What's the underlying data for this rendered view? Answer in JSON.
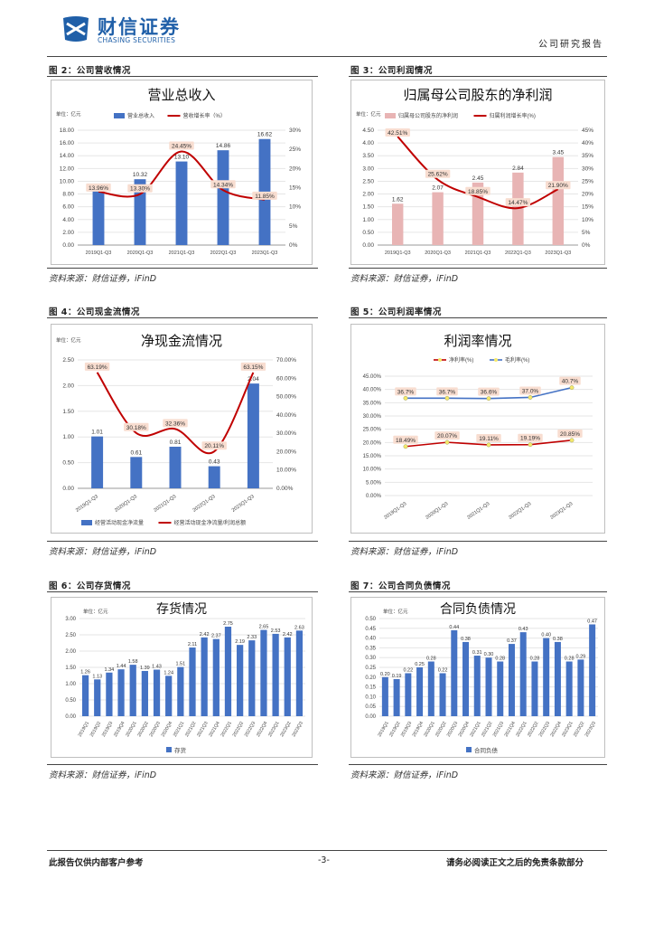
{
  "header": {
    "brand_cn": "财信证券",
    "brand_en": "CHASING SECURITIES",
    "report_type": "公司研究报告"
  },
  "colors": {
    "bar_blue": "#4472C4",
    "line_red": "#C00000",
    "bar_pink": "#E8B4B4",
    "line_blue": "#4472C4",
    "label_bg": "#F8DDD0"
  },
  "figures": {
    "fig2": {
      "caption": "图 2：公司营收情况",
      "source": "资料来源：财信证券，iFinD",
      "chart_data": {
        "type": "bar+line",
        "title": "营业总收入",
        "unit": "亿元",
        "categories": [
          "2019Q1-Q3",
          "2020Q1-Q3",
          "2021Q1-Q3",
          "2022Q1-Q3",
          "2023Q1-Q3"
        ],
        "series": [
          {
            "name": "营业总收入",
            "type": "bar",
            "values": [
              8.96,
              10.32,
              13.1,
              14.86,
              16.62
            ]
          },
          {
            "name": "营收增长率（%）",
            "type": "line",
            "values": [
              13.96,
              13.3,
              24.45,
              14.34,
              11.85
            ]
          }
        ],
        "ylim_left": [
          0,
          18
        ],
        "yticks_left": [
          "0.00",
          "2.00",
          "4.00",
          "6.00",
          "8.00",
          "10.00",
          "12.00",
          "14.00",
          "16.00",
          "18.00"
        ],
        "ylim_right": [
          0,
          30
        ],
        "yticks_right": [
          "0%",
          "5%",
          "10%",
          "15%",
          "20%",
          "25%",
          "30%"
        ],
        "bar_labels": [
          "",
          "10.32",
          "13.10",
          "14.86",
          "16.62"
        ],
        "line_labels": [
          "13.96%",
          "13.30%",
          "24.45%",
          "14.34%",
          "11.85%"
        ]
      }
    },
    "fig3": {
      "caption": "图 3：公司利润情况",
      "source": "资料来源：财信证券，iFinD",
      "chart_data": {
        "type": "bar+line",
        "title": "归属母公司股东的净利润",
        "unit": "亿元",
        "categories": [
          "2019Q1-Q3",
          "2020Q1-Q3",
          "2021Q1-Q3",
          "2022Q1-Q3",
          "2023Q1-Q3"
        ],
        "series": [
          {
            "name": "归属母公司股东的净利润",
            "type": "bar",
            "values": [
              1.62,
              2.07,
              2.45,
              2.84,
              3.45
            ]
          },
          {
            "name": "归属利润增长率(%)",
            "type": "line",
            "values": [
              42.51,
              25.62,
              18.85,
              14.47,
              21.9
            ]
          }
        ],
        "ylim_left": [
          0,
          4.5
        ],
        "yticks_left": [
          "0.00",
          "0.50",
          "1.00",
          "1.50",
          "2.00",
          "2.50",
          "3.00",
          "3.50",
          "4.00",
          "4.50"
        ],
        "ylim_right": [
          0,
          45
        ],
        "yticks_right": [
          "0%",
          "5%",
          "10%",
          "15%",
          "20%",
          "25%",
          "30%",
          "35%",
          "40%",
          "45%"
        ],
        "bar_labels": [
          "1.62",
          "2.07",
          "2.45",
          "2.84",
          "3.45"
        ],
        "line_labels": [
          "42.51%",
          "25.62%",
          "18.85%",
          "14.47%",
          "21.90%"
        ]
      }
    },
    "fig4": {
      "caption": "图 4：公司现金流情况",
      "source": "资料来源：财信证券，iFinD",
      "chart_data": {
        "type": "bar+line",
        "title": "净现金流情况",
        "unit": "亿元",
        "categories": [
          "2019Q1-Q3",
          "2020Q1-Q3",
          "2021Q1-Q3",
          "2022Q1-Q3",
          "2023Q1-Q3"
        ],
        "series": [
          {
            "name": "经营活动现金净流量",
            "type": "bar",
            "values": [
              1.01,
              0.61,
              0.81,
              0.43,
              2.04
            ]
          },
          {
            "name": "经营活动现金净流量/利润总额",
            "type": "line",
            "values": [
              63.19,
              30.18,
              32.36,
              20.11,
              63.15
            ]
          }
        ],
        "ylim_left": [
          0,
          2.5
        ],
        "yticks_left": [
          "0.00",
          "0.50",
          "1.00",
          "1.50",
          "2.00",
          "2.50"
        ],
        "ylim_right": [
          0,
          70
        ],
        "yticks_right": [
          "0.00%",
          "10.00%",
          "20.00%",
          "30.00%",
          "40.00%",
          "50.00%",
          "60.00%",
          "70.00%"
        ],
        "bar_labels": [
          "1.01",
          "0.61",
          "0.81",
          "0.43",
          "2.04"
        ],
        "line_labels": [
          "63.19%",
          "30.18%",
          "32.36%",
          "20.11%",
          "63.15%"
        ]
      }
    },
    "fig5": {
      "caption": "图 5：公司利润率情况",
      "source": "资料来源：财信证券，iFinD",
      "chart_data": {
        "type": "line",
        "title": "利润率情况",
        "categories": [
          "2019Q1-Q3",
          "2020Q1-Q3",
          "2021Q1-Q3",
          "2022Q1-Q3",
          "2023Q1-Q3"
        ],
        "series": [
          {
            "name": "净利率(%)",
            "values": [
              18.49,
              20.07,
              19.11,
              19.19,
              20.85
            ]
          },
          {
            "name": "毛利率(%)",
            "values": [
              36.7,
              36.7,
              36.6,
              37.0,
              40.7
            ]
          }
        ],
        "ylim": [
          0,
          45
        ],
        "yticks": [
          "0.00%",
          "5.00%",
          "10.00%",
          "15.00%",
          "20.00%",
          "25.00%",
          "30.00%",
          "35.00%",
          "40.00%",
          "45.00%"
        ],
        "labels_net": [
          "18.49%",
          "20.07%",
          "19.11%",
          "19.19%",
          "20.85%"
        ],
        "labels_gross": [
          "36.7%",
          "36.7%",
          "36.6%",
          "37.0%",
          "40.7%"
        ]
      }
    },
    "fig6": {
      "caption": "图 6：公司存货情况",
      "source": "资料来源：财信证券，iFinD",
      "chart_data": {
        "type": "bar",
        "title": "存货情况",
        "unit": "亿元",
        "categories": [
          "2019Q1",
          "2019Q2",
          "2019Q3",
          "2019Q4",
          "2020Q1",
          "2020Q2",
          "2020Q3",
          "2020Q4",
          "2021Q1",
          "2021Q2",
          "2021Q3",
          "2021Q4",
          "2022Q1",
          "2022Q2",
          "2022Q3",
          "2022Q4",
          "2023Q1",
          "2023Q2",
          "2023Q3"
        ],
        "series": [
          {
            "name": "存货",
            "values": [
              1.26,
              1.13,
              1.34,
              1.44,
              1.58,
              1.39,
              1.43,
              1.24,
              1.51,
              2.11,
              2.42,
              2.37,
              2.75,
              2.19,
              2.33,
              2.65,
              2.53,
              2.42,
              2.63
            ]
          }
        ],
        "ylim": [
          0,
          3
        ],
        "yticks": [
          "0.00",
          "0.50",
          "1.00",
          "1.50",
          "2.00",
          "2.50",
          "3.00"
        ],
        "bar_labels": [
          "1.26",
          "1.13",
          "1.34",
          "1.44",
          "1.58",
          "1.39",
          "1.43",
          "1.24",
          "1.51",
          "2.11",
          "2.42",
          "2.37",
          "2.75",
          "2.19",
          "2.33",
          "2.65",
          "2.53",
          "2.42",
          "2.63"
        ]
      }
    },
    "fig7": {
      "caption": "图 7：公司合同负债情况",
      "source": "资料来源：财信证券，iFinD",
      "chart_data": {
        "type": "bar",
        "title": "合同负债情况",
        "unit": "亿元",
        "categories": [
          "2019Q1",
          "2019Q2",
          "2019Q3",
          "2019Q4",
          "2020Q1",
          "2020Q2",
          "2020Q3",
          "2020Q4",
          "2021Q1",
          "2021Q2",
          "2021Q3",
          "2021Q4",
          "2022Q1",
          "2022Q2",
          "2022Q3",
          "2022Q4",
          "2023Q1",
          "2023Q2",
          "2023Q3"
        ],
        "series": [
          {
            "name": "合同负债",
            "values": [
              0.2,
              0.19,
              0.22,
              0.25,
              0.28,
              0.22,
              0.44,
              0.38,
              0.31,
              0.3,
              0.28,
              0.37,
              0.43,
              0.28,
              0.4,
              0.38,
              0.28,
              0.29,
              0.47
            ]
          }
        ],
        "ylim": [
          0,
          0.5
        ],
        "yticks": [
          "0.00",
          "0.05",
          "0.10",
          "0.15",
          "0.20",
          "0.25",
          "0.30",
          "0.35",
          "0.40",
          "0.45",
          "0.50"
        ],
        "bar_labels": [
          "0.20",
          "0.19",
          "0.22",
          "0.25",
          "0.28",
          "0.22",
          "0.44",
          "0.38",
          "0.31",
          "0.30",
          "0.28",
          "0.37",
          "0.43",
          "0.28",
          "0.40",
          "0.38",
          "0.28",
          "0.29",
          "0.47"
        ]
      }
    }
  },
  "footer": {
    "left": "此报告仅供内部客户参考",
    "page": "-3-",
    "right": "请务必阅读正文之后的免责条款部分"
  }
}
